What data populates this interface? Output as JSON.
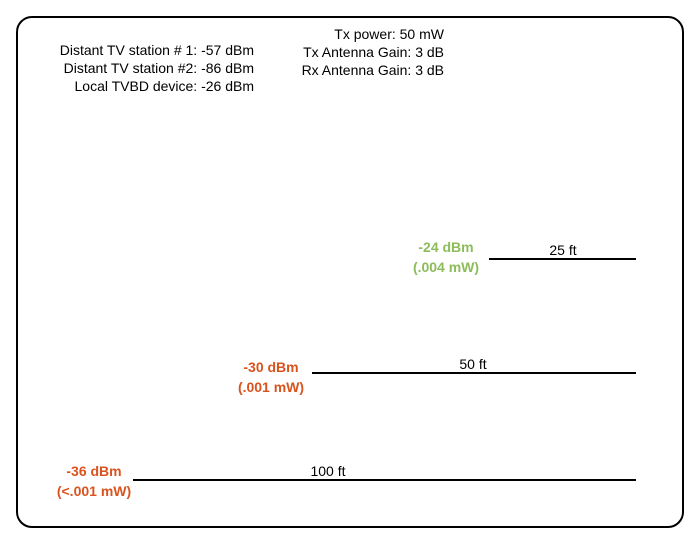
{
  "colors": {
    "strong_signal": "#8cbd5a",
    "weak_signal": "#d9531e",
    "line": "#000000"
  },
  "stations": {
    "station1": "Distant TV station # 1: -57 dBm",
    "station2": "Distant TV station #2: -86 dBm",
    "local": "Local TVBD device: -26 dBm"
  },
  "tx": {
    "power": "Tx power: 50 mW",
    "tx_gain": "Tx Antenna Gain: 3 dB",
    "rx_gain": "Rx Antenna Gain: 3 dB"
  },
  "distances": [
    {
      "distance": "25 ft",
      "dbm": "-24 dBm",
      "mw": "(.004 mW)",
      "color": "#8cbd5a"
    },
    {
      "distance": "50 ft",
      "dbm": "-30 dBm",
      "mw": "(.001 mW)",
      "color": "#d9531e"
    },
    {
      "distance": "100 ft",
      "dbm": "-36 dBm",
      "mw": "(<.001 mW)",
      "color": "#d9531e"
    }
  ]
}
